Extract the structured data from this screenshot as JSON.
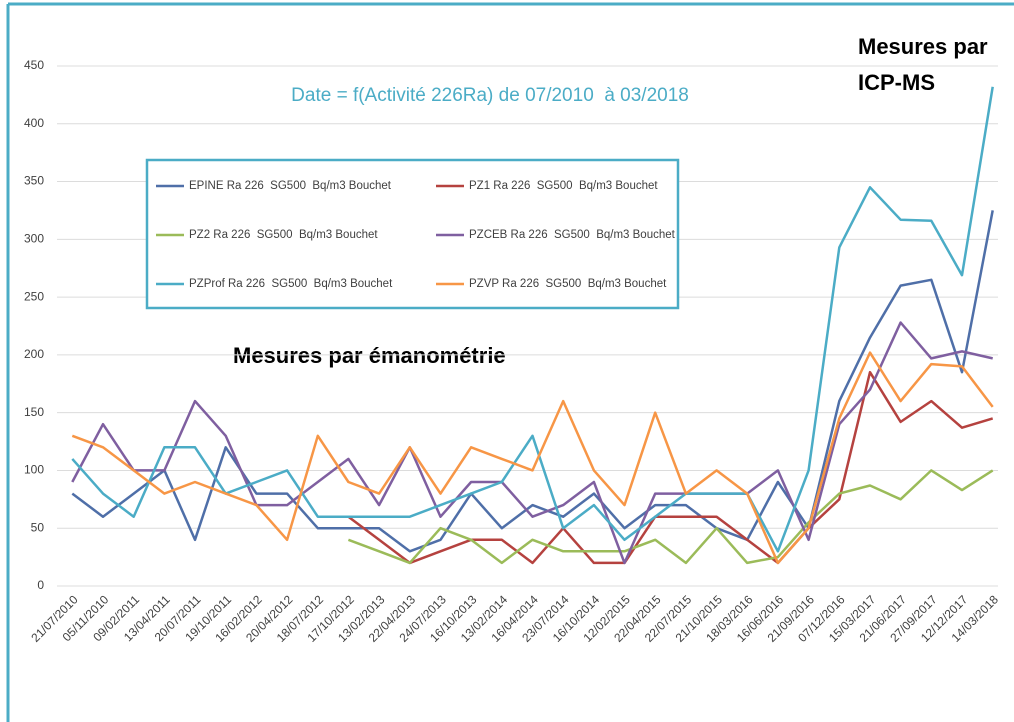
{
  "chart_data": {
    "type": "line",
    "title": "Date = f(Activité 226Ra) de 07/2010  à 03/2018",
    "annotations": [
      [
        "Mesures par",
        "ICP-MS"
      ],
      [
        "Mesures par émanométrie"
      ]
    ],
    "categories": [
      "21/07/2010",
      "05/11/2010",
      "09/02/2011",
      "13/04/2011",
      "20/07/2011",
      "19/10/2011",
      "16/02/2012",
      "20/04/2012",
      "18/07/2012",
      "17/10/2012",
      "13/02/2013",
      "22/04/2013",
      "24/07/2013",
      "16/10/2013",
      "13/02/2014",
      "16/04/2014",
      "23/07/2014",
      "16/10/2014",
      "12/02/2015",
      "22/04/2015",
      "22/07/2015",
      "21/10/2015",
      "18/03/2016",
      "16/06/2016",
      "21/09/2016",
      "07/12/2016",
      "15/03/2017",
      "21/06/2017",
      "27/09/2017",
      "12/12/2017",
      "14/03/2018"
    ],
    "series": [
      {
        "name": "EPINE Ra 226  SG500  Bq/m3 Bouchet",
        "color": "#4f6fa8",
        "values": [
          80,
          60,
          80,
          100,
          40,
          120,
          80,
          80,
          50,
          50,
          50,
          30,
          40,
          80,
          50,
          70,
          60,
          80,
          50,
          70,
          70,
          50,
          40,
          90,
          50,
          160,
          215,
          260,
          265,
          185,
          325
        ]
      },
      {
        "name": "PZ1 Ra 226  SG500  Bq/m3 Bouchet",
        "color": "#b5423f",
        "values": [
          null,
          null,
          null,
          null,
          null,
          null,
          null,
          null,
          null,
          60,
          40,
          20,
          30,
          40,
          40,
          20,
          50,
          20,
          20,
          60,
          60,
          60,
          40,
          20,
          50,
          75,
          185,
          142,
          160,
          137,
          145
        ]
      },
      {
        "name": "PZ2 Ra 226  SG500  Bq/m3 Bouchet",
        "color": "#9bbb59",
        "values": [
          null,
          null,
          null,
          null,
          null,
          null,
          null,
          null,
          null,
          40,
          30,
          20,
          50,
          40,
          20,
          40,
          30,
          30,
          30,
          40,
          20,
          50,
          20,
          25,
          55,
          80,
          87,
          75,
          100,
          83,
          100
        ]
      },
      {
        "name": "PZCEB Ra 226  SG500  Bq/m3 Bouchet",
        "color": "#7f5fa0",
        "values": [
          90,
          140,
          100,
          100,
          160,
          130,
          70,
          70,
          90,
          110,
          70,
          120,
          60,
          90,
          90,
          60,
          70,
          90,
          20,
          80,
          80,
          80,
          80,
          100,
          40,
          140,
          170,
          228,
          197,
          203,
          197
        ]
      },
      {
        "name": "PZProf Ra 226  SG500  Bq/m3 Bouchet",
        "color": "#4bacc6",
        "values": [
          110,
          80,
          60,
          120,
          120,
          80,
          90,
          100,
          60,
          60,
          60,
          60,
          70,
          80,
          90,
          130,
          50,
          70,
          40,
          60,
          80,
          80,
          80,
          30,
          100,
          293,
          345,
          317,
          316,
          269,
          432
        ]
      },
      {
        "name": "PZVP Ra 226  SG500  Bq/m3 Bouchet",
        "color": "#f79646",
        "values": [
          130,
          120,
          100,
          80,
          90,
          80,
          70,
          40,
          130,
          90,
          80,
          120,
          80,
          120,
          110,
          100,
          160,
          100,
          70,
          150,
          80,
          100,
          80,
          20,
          50,
          145,
          202,
          160,
          192,
          190,
          155
        ]
      }
    ],
    "ylim": [
      0,
      450
    ],
    "yticks": [
      0,
      50,
      100,
      150,
      200,
      250,
      300,
      350,
      400,
      450
    ],
    "grid": true
  }
}
